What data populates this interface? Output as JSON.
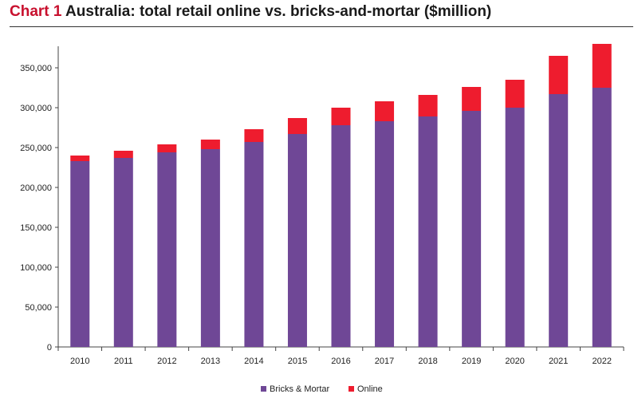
{
  "title": {
    "prefix": "Chart 1",
    "text": "Australia: total retail online vs. bricks-and-mortar ($million)"
  },
  "colors": {
    "bricks_mortar": "#6f4796",
    "online": "#ee1c2e",
    "title_accent": "#c8102e"
  },
  "chart_data": {
    "type": "bar",
    "stacked": true,
    "title": "Australia: total retail online vs. bricks-and-mortar ($million)",
    "categories": [
      "2010",
      "2011",
      "2012",
      "2013",
      "2014",
      "2015",
      "2016",
      "2017",
      "2018",
      "2019",
      "2020",
      "2021",
      "2022"
    ],
    "series": [
      {
        "name": "Bricks & Mortar",
        "values": [
          233000,
          237000,
          244000,
          248000,
          257000,
          267000,
          278000,
          283000,
          289000,
          296000,
          300000,
          317000,
          325000
        ]
      },
      {
        "name": "Online",
        "values": [
          7000,
          9000,
          10000,
          12000,
          16000,
          20000,
          22000,
          25000,
          27000,
          30000,
          35000,
          48000,
          55000
        ]
      }
    ],
    "yticks": [
      "0",
      "50,000",
      "100,000",
      "150,000",
      "200,000",
      "250,000",
      "300,000",
      "350,000"
    ],
    "ylim": [
      0,
      380000
    ],
    "grid": false,
    "legend_position": "bottom"
  }
}
